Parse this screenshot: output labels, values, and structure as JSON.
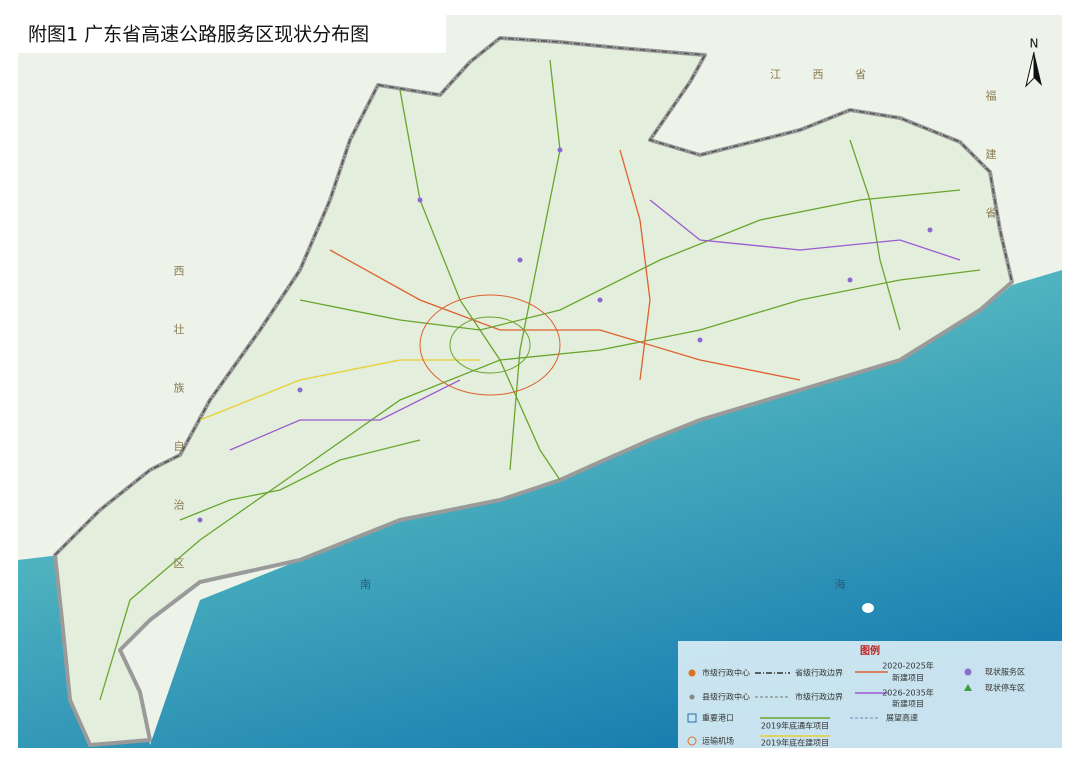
{
  "title": "附图1  广东省高速公路服务区现状分布图",
  "north": "N",
  "regions": {
    "jiangxi": "江 西 省",
    "fujian": "福 建 省",
    "guangxi": "西 壮 族 自 治 区",
    "sea": "南 海"
  },
  "legend": {
    "title": "图例",
    "items": [
      {
        "label": [
          "市级行政中心"
        ]
      },
      {
        "label": [
          "省级行政边界"
        ]
      },
      {
        "label": [
          "2020-2025年",
          "新建项目"
        ]
      },
      {
        "label": [
          "现状服务区"
        ]
      },
      {
        "label": [
          "县级行政中心"
        ]
      },
      {
        "label": [
          "市级行政边界"
        ]
      },
      {
        "label": [
          "2026-2035年",
          "新建项目"
        ]
      },
      {
        "label": [
          "现状停车区"
        ]
      },
      {
        "label": [
          "重要港口"
        ]
      },
      {
        "label": [
          "2019年底通车项目"
        ]
      },
      {
        "label": [
          "展望高速"
        ]
      },
      {
        "label": [
          "运输机场"
        ]
      },
      {
        "label": [
          "2019年底在建项目"
        ]
      }
    ]
  }
}
